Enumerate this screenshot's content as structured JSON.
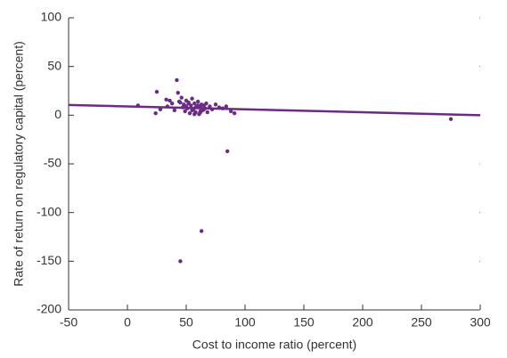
{
  "chart_data": {
    "type": "scatter",
    "x_label": "Cost to income ratio (percent)",
    "y_label": "Rate of return on regulatory capital (percent)",
    "xlim": [
      -50,
      300
    ],
    "xticks": [
      -50,
      0,
      50,
      100,
      150,
      200,
      250,
      300
    ],
    "ylim": [
      -200,
      100
    ],
    "yticks": [
      -200,
      -150,
      -100,
      -50,
      0,
      50,
      100
    ],
    "series": [
      {
        "type": "scatter",
        "color": "#6b2a85",
        "x": [
          9,
          25,
          42,
          43,
          33,
          36,
          24,
          28,
          34,
          38,
          40,
          44,
          46,
          47,
          48,
          49,
          50,
          51,
          52,
          53,
          54,
          55,
          56,
          57,
          58,
          59,
          60,
          61,
          62,
          63,
          64,
          65,
          66,
          67,
          68,
          70,
          72,
          75,
          78,
          81,
          84,
          88,
          91,
          45,
          50,
          55,
          58,
          62,
          65,
          52,
          57,
          60,
          62,
          85,
          63,
          45,
          275
        ],
        "y": [
          10,
          24,
          36,
          23,
          16,
          15,
          2,
          6,
          9,
          12,
          5,
          14,
          18,
          8,
          11,
          4,
          15,
          7,
          13,
          2,
          10,
          17,
          6,
          12,
          3,
          9,
          14,
          1,
          8,
          11,
          5,
          10,
          7,
          12,
          3,
          9,
          6,
          11,
          8,
          7,
          9,
          4,
          2,
          13,
          9,
          5,
          8,
          3,
          6,
          12,
          1,
          10,
          4,
          -37,
          -119,
          -150,
          -4
        ]
      },
      {
        "type": "line",
        "color": "#6b2a85",
        "x": [
          -50,
          300
        ],
        "y": [
          10.5,
          0
        ]
      }
    ]
  }
}
